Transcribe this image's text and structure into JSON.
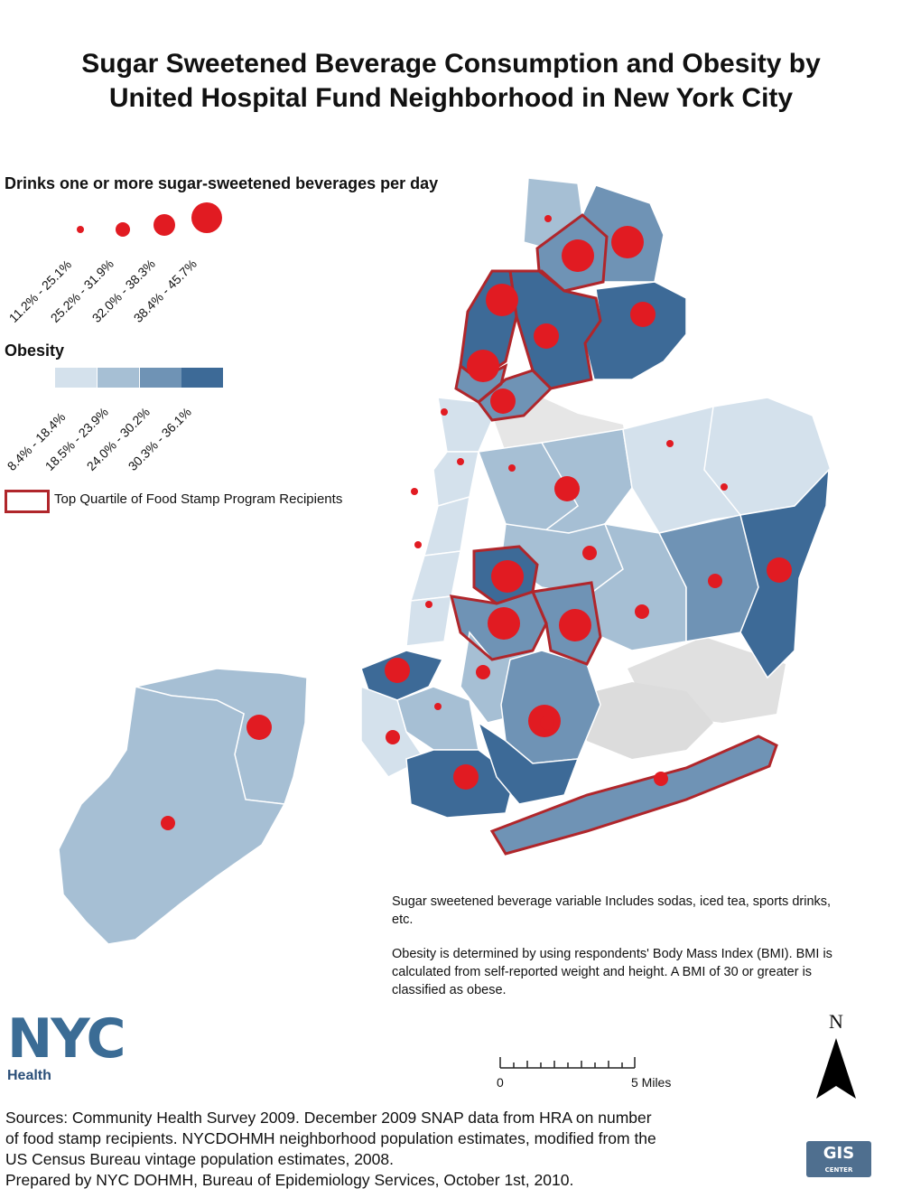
{
  "title": {
    "line1": "Sugar Sweetened Beverage Consumption and Obesity by",
    "line2": "United Hospital Fund Neighborhood in New York City"
  },
  "legend": {
    "beverage_heading": "Drinks one or more sugar-sweetened beverages per day",
    "beverage_classes": [
      "11.2% - 25.1%",
      "25.2% - 31.9%",
      "32.0% - 38.3%",
      "38.4% - 45.7%"
    ],
    "obesity_heading": "Obesity",
    "obesity_classes": [
      "8.4% - 18.4%",
      "18.5% - 23.9%",
      "24.0% - 30.2%",
      "30.3% - 36.1%"
    ],
    "obesity_colors": [
      "#d4e1ec",
      "#a6bfd4",
      "#6f93b5",
      "#3d6a97"
    ],
    "food_stamp_label": "Top Quartile of Food Stamp Program Recipients",
    "food_stamp_color": "#b0262b",
    "dot_color": "#e11b22"
  },
  "notes": {
    "beverage_def": "Sugar sweetened beverage variable Includes sodas, iced tea, sports drinks, etc.",
    "obesity_def": "Obesity is determined by using respondents' Body Mass Index (BMI).  BMI is calculated from self-reported weight and height. A BMI of 30 or greater is classified as obese."
  },
  "logo": {
    "nyc": "NYC",
    "health": "Health"
  },
  "gis_logo": {
    "text": "GIS",
    "sub": "CENTER"
  },
  "scale_bar": {
    "start": "0",
    "end": "5 Miles"
  },
  "north_arrow": {
    "label": "N"
  },
  "sources": {
    "line1": "Sources: Community Health Survey 2009.  December 2009 SNAP data from HRA on number",
    "line2": "of food stamp recipients.  NYCDOHMH neighborhood population estimates, modified from the",
    "line3": "US Census Bureau vintage population estimates, 2008.",
    "line4": "Prepared by NYC DOHMH, Bureau of Epidemiology Services, October 1st, 2010."
  },
  "map": {
    "neighborhoods": [
      {
        "obesity_class": 1,
        "beverage_class": 0,
        "food_stamp_top_quartile": false
      },
      {
        "obesity_class": 2,
        "beverage_class": 3,
        "food_stamp_top_quartile": true
      },
      {
        "obesity_class": 2,
        "beverage_class": 3,
        "food_stamp_top_quartile": false
      },
      {
        "obesity_class": 3,
        "beverage_class": 2,
        "food_stamp_top_quartile": true
      },
      {
        "obesity_class": 3,
        "beverage_class": 3,
        "food_stamp_top_quartile": true
      },
      {
        "obesity_class": 3,
        "beverage_class": 2,
        "food_stamp_top_quartile": false
      },
      {
        "obesity_class": 2,
        "beverage_class": 3,
        "food_stamp_top_quartile": true
      },
      {
        "obesity_class": 2,
        "beverage_class": 2,
        "food_stamp_top_quartile": true
      },
      {
        "obesity_class": 0,
        "beverage_class": 0,
        "food_stamp_top_quartile": false
      },
      {
        "obesity_class": 0,
        "beverage_class": 0,
        "food_stamp_top_quartile": false
      },
      {
        "obesity_class": 0,
        "beverage_class": 0,
        "food_stamp_top_quartile": false
      },
      {
        "obesity_class": 0,
        "beverage_class": 0,
        "food_stamp_top_quartile": false
      },
      {
        "obesity_class": 0,
        "beverage_class": 0,
        "food_stamp_top_quartile": false
      },
      {
        "obesity_class": 1,
        "beverage_class": 0,
        "food_stamp_top_quartile": false
      },
      {
        "obesity_class": 1,
        "beverage_class": 2,
        "food_stamp_top_quartile": false
      },
      {
        "obesity_class": 0,
        "beverage_class": 0,
        "food_stamp_top_quartile": false
      },
      {
        "obesity_class": 0,
        "beverage_class": 0,
        "food_stamp_top_quartile": false
      },
      {
        "obesity_class": 1,
        "beverage_class": 1,
        "food_stamp_top_quartile": false
      },
      {
        "obesity_class": 1,
        "beverage_class": 1,
        "food_stamp_top_quartile": false
      },
      {
        "obesity_class": 2,
        "beverage_class": 1,
        "food_stamp_top_quartile": false
      },
      {
        "obesity_class": 3,
        "beverage_class": 2,
        "food_stamp_top_quartile": false
      },
      {
        "obesity_class": 3,
        "beverage_class": 3,
        "food_stamp_top_quartile": true
      },
      {
        "obesity_class": 2,
        "beverage_class": 3,
        "food_stamp_top_quartile": true
      },
      {
        "obesity_class": 2,
        "beverage_class": 3,
        "food_stamp_top_quartile": true
      },
      {
        "obesity_class": 1,
        "beverage_class": 1,
        "food_stamp_top_quartile": false
      },
      {
        "obesity_class": 3,
        "beverage_class": 2,
        "food_stamp_top_quartile": false
      },
      {
        "obesity_class": 2,
        "beverage_class": 3,
        "food_stamp_top_quartile": false
      },
      {
        "obesity_class": 1,
        "beverage_class": 0,
        "food_stamp_top_quartile": false
      },
      {
        "obesity_class": 0,
        "beverage_class": 1,
        "food_stamp_top_quartile": false
      },
      {
        "obesity_class": 3,
        "beverage_class": 2,
        "food_stamp_top_quartile": false
      },
      {
        "obesity_class": 3,
        "beverage_class": 1,
        "food_stamp_top_quartile": false
      },
      {
        "obesity_class": 2,
        "beverage_class": 1,
        "food_stamp_top_quartile": true
      },
      {
        "obesity_class": 1,
        "beverage_class": 2,
        "food_stamp_top_quartile": false
      },
      {
        "obesity_class": 1,
        "beverage_class": 1,
        "food_stamp_top_quartile": false
      }
    ]
  }
}
